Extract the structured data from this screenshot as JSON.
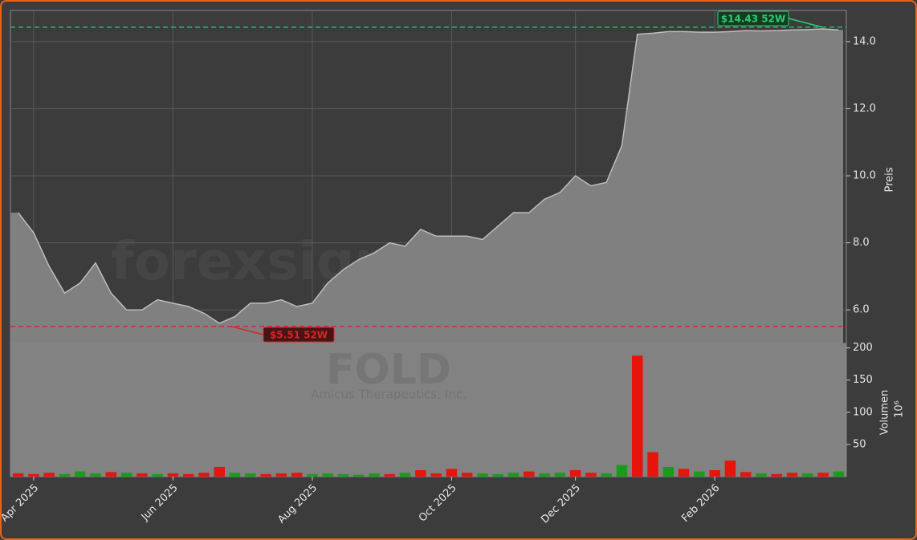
{
  "chart_data": [
    {
      "type": "line",
      "title": "FOLD",
      "subtitle": "Amicus Therapeutics, Inc.",
      "watermark": "forexsignale.trade",
      "y_label": "Preis",
      "color": "#bdbdbd",
      "area_color": "#808080",
      "grid": true,
      "categories": [
        null,
        "Apr 2025",
        null,
        null,
        null,
        null,
        null,
        null,
        null,
        null,
        "Jun 2025",
        null,
        null,
        null,
        null,
        null,
        null,
        null,
        null,
        "Aug 2025",
        null,
        null,
        null,
        null,
        null,
        null,
        null,
        null,
        "Oct 2025",
        null,
        null,
        null,
        null,
        null,
        null,
        null,
        "Dec 2025",
        null,
        null,
        null,
        null,
        null,
        null,
        null,
        null,
        "Feb 2026",
        null,
        null,
        null,
        null,
        null,
        null,
        null,
        null
      ],
      "values": [
        8.9,
        8.3,
        7.3,
        6.5,
        6.8,
        7.4,
        6.5,
        6.0,
        6.0,
        6.3,
        6.2,
        6.1,
        5.9,
        5.6,
        5.8,
        6.2,
        6.2,
        6.3,
        6.1,
        6.2,
        6.8,
        7.2,
        7.5,
        7.7,
        8.0,
        7.9,
        8.4,
        8.2,
        8.2,
        8.2,
        8.1,
        8.5,
        8.9,
        8.9,
        9.3,
        9.5,
        10.0,
        9.7,
        9.8,
        10.9,
        14.22,
        14.25,
        14.3,
        14.3,
        14.28,
        14.28,
        14.3,
        14.33,
        14.32,
        14.33,
        14.35,
        14.36,
        14.38,
        14.35
      ],
      "ylim": [
        5.0,
        14.93
      ],
      "yticks": [
        {
          "value": 6,
          "label": "6.0"
        },
        {
          "value": 8,
          "label": "8.0"
        },
        {
          "value": 10,
          "label": "10.0"
        },
        {
          "value": 12,
          "label": "12.0"
        },
        {
          "value": 14,
          "label": "14.0"
        }
      ],
      "annotations": [
        {
          "text": "$14.43 52W",
          "value": 14.43,
          "color": "#2ecc71"
        },
        {
          "text": "$5.51 52W",
          "value": 5.51,
          "color": "#e0202a"
        }
      ]
    },
    {
      "type": "bar",
      "y_label": "Volumen",
      "y_unit": "10⁶",
      "values": [
        5,
        4,
        6,
        4,
        8,
        5,
        7,
        6,
        5,
        4,
        5,
        4,
        6,
        15,
        6,
        5,
        4,
        5,
        6,
        4,
        5,
        4,
        3,
        5,
        4,
        6,
        10,
        5,
        12,
        6,
        5,
        4,
        6,
        8,
        5,
        6,
        10,
        6,
        5,
        18,
        188,
        38,
        15,
        12,
        8,
        10,
        25,
        7,
        5,
        4,
        6,
        5,
        6,
        8
      ],
      "colors": [
        "#e8140c",
        "#e8140c",
        "#e8140c",
        "#1a9c1a",
        "#1a9c1a",
        "#1a9c1a",
        "#e8140c",
        "#1a9c1a",
        "#e8140c",
        "#1a9c1a",
        "#e8140c",
        "#e8140c",
        "#e8140c",
        "#e8140c",
        "#1a9c1a",
        "#1a9c1a",
        "#e8140c",
        "#e8140c",
        "#e8140c",
        "#1a9c1a",
        "#1a9c1a",
        "#1a9c1a",
        "#1a9c1a",
        "#1a9c1a",
        "#e8140c",
        "#1a9c1a",
        "#e8140c",
        "#e8140c",
        "#e8140c",
        "#e8140c",
        "#1a9c1a",
        "#1a9c1a",
        "#1a9c1a",
        "#e8140c",
        "#1a9c1a",
        "#1a9c1a",
        "#e8140c",
        "#e8140c",
        "#1a9c1a",
        "#1a9c1a",
        "#e8140c",
        "#e8140c",
        "#1a9c1a",
        "#e8140c",
        "#1a9c1a",
        "#e8140c",
        "#e8140c",
        "#e8140c",
        "#1a9c1a",
        "#e8140c",
        "#e8140c",
        "#1a9c1a",
        "#e8140c",
        "#1a9c1a"
      ],
      "ylim": [
        0,
        207
      ],
      "yticks": [
        50,
        100,
        150,
        200
      ]
    }
  ]
}
